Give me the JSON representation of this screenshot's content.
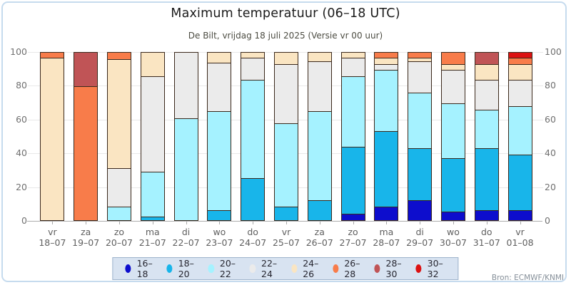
{
  "header": {
    "title": "Maximum temperatuur (06–18 UTC)",
    "subtitle": "De Bilt, vrijdag 18 juli 2025 (Versie vr 00 uur)"
  },
  "source": "Bron: ECMWF/KNMI",
  "chart_data": {
    "type": "bar",
    "stacked": true,
    "title": "Maximum temperatuur (06–18 UTC)",
    "subtitle": "De Bilt, vrijdag 18 juli 2025 (Versie vr 00 uur)",
    "unit": "%",
    "ylim": [
      0,
      100
    ],
    "yticks": [
      0,
      20,
      40,
      60,
      80,
      100
    ],
    "grid": true,
    "legend_position": "bottom",
    "categories": [
      {
        "day": "vr",
        "date": "18–07"
      },
      {
        "day": "za",
        "date": "19–07"
      },
      {
        "day": "zo",
        "date": "20–07"
      },
      {
        "day": "ma",
        "date": "21–07"
      },
      {
        "day": "di",
        "date": "22–07"
      },
      {
        "day": "wo",
        "date": "23–07"
      },
      {
        "day": "do",
        "date": "24–07"
      },
      {
        "day": "vr",
        "date": "25–07"
      },
      {
        "day": "za",
        "date": "26–07"
      },
      {
        "day": "zo",
        "date": "27–07"
      },
      {
        "day": "ma",
        "date": "28–07"
      },
      {
        "day": "di",
        "date": "29–07"
      },
      {
        "day": "wo",
        "date": "30–07"
      },
      {
        "day": "do",
        "date": "31–07"
      },
      {
        "day": "vr",
        "date": "01–08"
      }
    ],
    "series": [
      {
        "name": "16–18",
        "color": "#0d0dcd",
        "values": [
          0,
          0,
          0,
          0,
          0,
          0,
          0,
          0,
          0,
          4,
          8,
          12,
          5,
          6,
          6
        ]
      },
      {
        "name": "18–20",
        "color": "#18b5ea",
        "values": [
          0,
          0,
          0,
          2,
          0,
          6,
          25,
          8,
          12,
          40,
          45,
          31,
          32,
          37,
          33
        ]
      },
      {
        "name": "20–22",
        "color": "#a5f2ff",
        "values": [
          0,
          0,
          8,
          27,
          61,
          59,
          59,
          50,
          53,
          42,
          37,
          33,
          33,
          23,
          29
        ]
      },
      {
        "name": "22–24",
        "color": "#ebebeb",
        "values": [
          0,
          0,
          23,
          57,
          39,
          29,
          13,
          35,
          30,
          11,
          3,
          19,
          20,
          18,
          16
        ]
      },
      {
        "name": "24–26",
        "color": "#fae5c2",
        "values": [
          97,
          0,
          65,
          14,
          0,
          6,
          3,
          7,
          5,
          3,
          4,
          2,
          3,
          9,
          9
        ]
      },
      {
        "name": "26–28",
        "color": "#f87c4a",
        "values": [
          3,
          80,
          4,
          0,
          0,
          0,
          0,
          0,
          0,
          0,
          3,
          3,
          7,
          0,
          4
        ]
      },
      {
        "name": "28–30",
        "color": "#c05456",
        "values": [
          0,
          20,
          0,
          0,
          0,
          0,
          0,
          0,
          0,
          0,
          0,
          0,
          0,
          7,
          0
        ]
      },
      {
        "name": "30–32",
        "color": "#dc1212",
        "values": [
          0,
          0,
          0,
          0,
          0,
          0,
          0,
          0,
          0,
          0,
          0,
          0,
          0,
          0,
          3
        ]
      }
    ]
  }
}
